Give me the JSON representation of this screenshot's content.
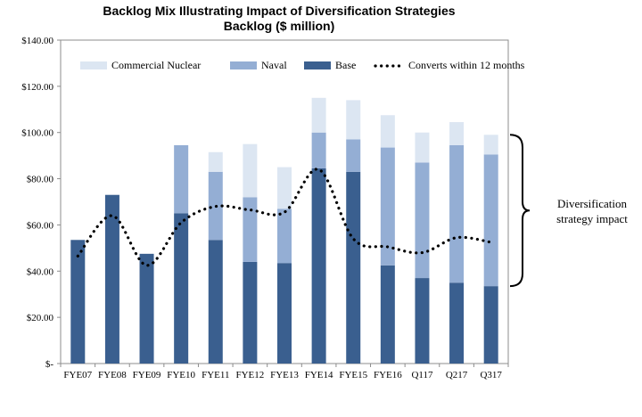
{
  "chart_data": {
    "type": "bar",
    "stacked": true,
    "title": "Backlog Mix Illustrating Impact of Diversification Strategies",
    "subtitle": "Backlog ($ million)",
    "xlabel": "",
    "ylabel": "",
    "ylim": [
      0,
      140
    ],
    "yticks": [
      0,
      20,
      40,
      60,
      80,
      100,
      120,
      140
    ],
    "ytick_labels": [
      "$-",
      "$20.00",
      "$40.00",
      "$60.00",
      "$80.00",
      "$100.00",
      "$120.00",
      "$140.00"
    ],
    "categories": [
      "FYE07",
      "FYE08",
      "FYE09",
      "FYE10",
      "FYE11",
      "FYE12",
      "FYE13",
      "FYE14",
      "FYE15",
      "FYE16",
      "Q117",
      "Q217",
      "Q317"
    ],
    "series": [
      {
        "name": "Base",
        "color": "#3a5f8f",
        "values": [
          53.5,
          73.0,
          47.5,
          65.0,
          53.5,
          44.0,
          43.5,
          84.5,
          83.0,
          42.5,
          37.0,
          35.0,
          33.5
        ]
      },
      {
        "name": "Naval",
        "color": "#94aed4",
        "values": [
          0,
          0,
          0,
          29.5,
          29.5,
          28.0,
          23.5,
          15.5,
          14.0,
          51.0,
          50.0,
          59.5,
          57.0
        ]
      },
      {
        "name": "Commercial Nuclear",
        "color": "#dce6f2",
        "values": [
          0,
          0,
          0,
          0,
          8.5,
          23.0,
          18.0,
          15.0,
          17.0,
          14.0,
          13.0,
          10.0,
          8.5
        ]
      }
    ],
    "line": {
      "name": "Converts within 12 months",
      "style": "dotted",
      "color": "#000000",
      "values": [
        46.5,
        64.0,
        42.5,
        61.0,
        68.0,
        66.5,
        65.5,
        84.0,
        54.0,
        50.5,
        48.0,
        54.5,
        52.5
      ]
    },
    "legend_order": [
      "Commercial Nuclear",
      "Naval",
      "Base",
      "Converts within 12 months"
    ],
    "legend_position": "top",
    "annotation": {
      "lines": [
        "Diversification",
        "strategy impact"
      ],
      "bracket_from": 33.5,
      "bracket_to": 99.0
    },
    "grid": false
  }
}
